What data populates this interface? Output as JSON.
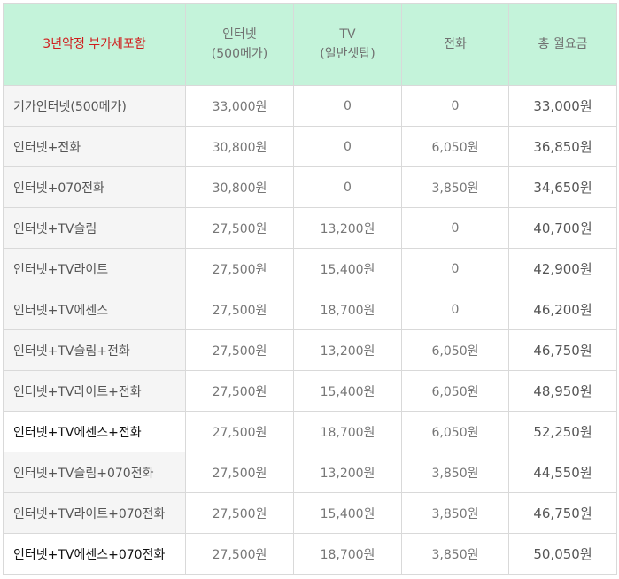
{
  "headers": {
    "plan": "3년약정 부가세포함",
    "internet_line1": "인터넷",
    "internet_line2": "(500메가)",
    "tv_line1": "TV",
    "tv_line2": "(일반셋탑)",
    "phone": "전화",
    "total": "총 월요금"
  },
  "rows": [
    {
      "plan": "기가인터넷(500메가)",
      "internet": "33,000원",
      "tv": "0",
      "phone": "0",
      "total": "33,000원"
    },
    {
      "plan": "인터넷+전화",
      "internet": "30,800원",
      "tv": "0",
      "phone": "6,050원",
      "total": "36,850원"
    },
    {
      "plan": "인터넷+070전화",
      "internet": "30,800원",
      "tv": "0",
      "phone": "3,850원",
      "total": "34,650원"
    },
    {
      "plan": "인터넷+TV슬림",
      "internet": "27,500원",
      "tv": "13,200원",
      "phone": "0",
      "total": "40,700원"
    },
    {
      "plan": "인터넷+TV라이트",
      "internet": "27,500원",
      "tv": "15,400원",
      "phone": "0",
      "total": "42,900원"
    },
    {
      "plan": "인터넷+TV에센스",
      "internet": "27,500원",
      "tv": "18,700원",
      "phone": "0",
      "total": "46,200원"
    },
    {
      "plan": "인터넷+TV슬림+전화",
      "internet": "27,500원",
      "tv": "13,200원",
      "phone": "6,050원",
      "total": "46,750원"
    },
    {
      "plan": "인터넷+TV라이트+전화",
      "internet": "27,500원",
      "tv": "15,400원",
      "phone": "6,050원",
      "total": "48,950원"
    },
    {
      "plan": "인터넷+TV에센스+전화",
      "internet": "27,500원",
      "tv": "18,700원",
      "phone": "6,050원",
      "total": "52,250원"
    },
    {
      "plan": "인터넷+TV슬림+070전화",
      "internet": "27,500원",
      "tv": "13,200원",
      "phone": "3,850원",
      "total": "44,550원"
    },
    {
      "plan": "인터넷+TV라이트+070전화",
      "internet": "27,500원",
      "tv": "15,400원",
      "phone": "3,850원",
      "total": "46,750원"
    },
    {
      "plan": "인터넷+TV에센스+070전화",
      "internet": "27,500원",
      "tv": "18,700원",
      "phone": "3,850원",
      "total": "50,050원"
    }
  ],
  "colors": {
    "header_bg": "#c4f3da",
    "plan_header_text": "#d01c1c",
    "border": "#d9d9d9"
  }
}
